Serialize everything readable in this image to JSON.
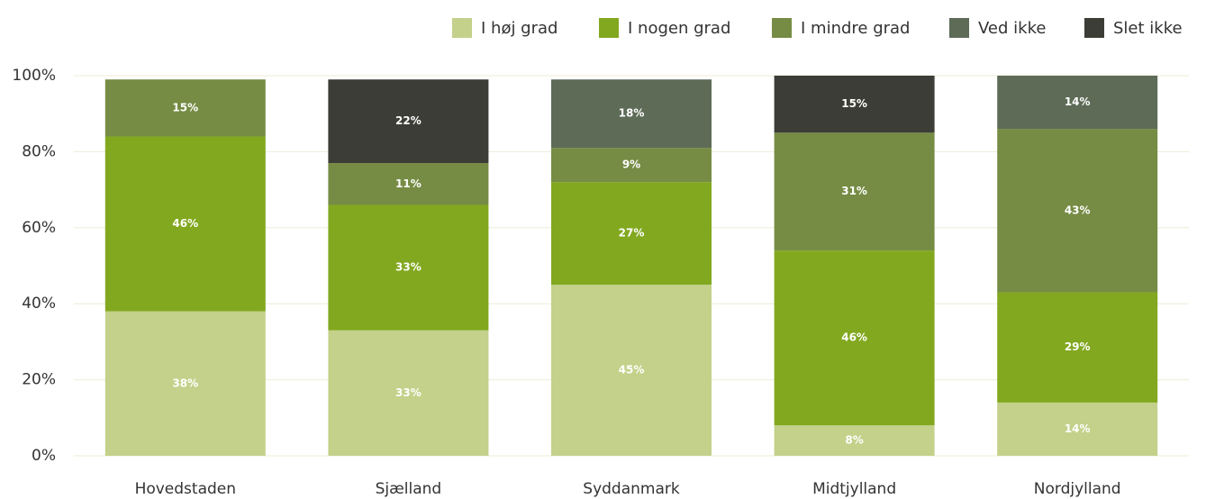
{
  "chart_data": {
    "type": "stacked_bar",
    "categories": [
      "Hovedstaden",
      "Sjælland",
      "Syddanmark",
      "Midtjylland",
      "Nordjylland"
    ],
    "series": [
      {
        "name": "I høj grad",
        "color": "#c3d18a",
        "values": [
          38,
          33,
          45,
          8,
          14
        ],
        "value_labels": [
          "38%",
          "33%",
          "45%",
          "8%",
          "14%"
        ]
      },
      {
        "name": "I nogen grad",
        "color": "#82a81f",
        "values": [
          46,
          33,
          27,
          46,
          29
        ],
        "value_labels": [
          "46%",
          "33%",
          "27%",
          "46%",
          "29%"
        ]
      },
      {
        "name": "I mindre grad",
        "color": "#768c44",
        "values": [
          15,
          11,
          9,
          31,
          43
        ],
        "value_labels": [
          "15%",
          "11%",
          "9%",
          "31%",
          "43%"
        ]
      },
      {
        "name": "Ved ikke",
        "color": "#5d6b57",
        "values": [
          null,
          null,
          18,
          null,
          14
        ],
        "value_labels": [
          null,
          null,
          "18%",
          null,
          "14%"
        ]
      },
      {
        "name": "Slet ikke",
        "color": "#3c3d36",
        "values": [
          null,
          22,
          null,
          15,
          null
        ],
        "value_labels": [
          null,
          "22%",
          null,
          "15%",
          null
        ]
      }
    ],
    "ylim": [
      0,
      100
    ],
    "yticks": [
      {
        "value": 0,
        "label": "0%"
      },
      {
        "value": 20,
        "label": "20%"
      },
      {
        "value": 40,
        "label": "40%"
      },
      {
        "value": 60,
        "label": "60%"
      },
      {
        "value": 80,
        "label": "80%"
      },
      {
        "value": 100,
        "label": "100%"
      }
    ],
    "grid": true,
    "legend": "top-right"
  }
}
